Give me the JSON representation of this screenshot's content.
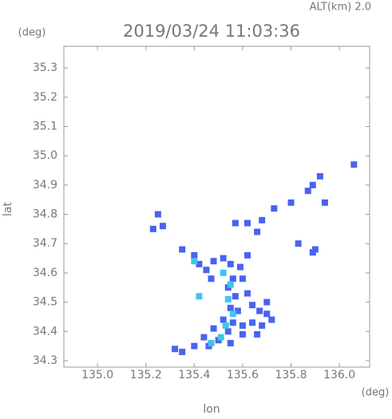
{
  "chart_data": {
    "type": "scatter",
    "title": "2019/03/24 11:03:36",
    "subtitle": "ALT(km) 2.0",
    "y_unit": "(deg)",
    "x_unit": "(deg)",
    "y_label": "lat",
    "x_label": "lon",
    "xlim": [
      134.861,
      136.125
    ],
    "ylim": [
      34.278,
      35.374
    ],
    "xticks": [
      {
        "value": 135,
        "label": "135.0"
      },
      135.2,
      135.4,
      135.6,
      135.8,
      {
        "value": 136,
        "label": "136.0"
      }
    ],
    "yticks": [
      34.3,
      34.4,
      34.5,
      34.6,
      34.7,
      34.8,
      34.9,
      {
        "value": 35,
        "label": "35.0"
      },
      35.1,
      35.2,
      35.3
    ],
    "series": [
      {
        "color": "#4a63ef",
        "x": [
          136.06,
          135.92,
          135.87,
          135.89,
          135.94,
          135.8,
          135.73,
          135.68,
          135.66,
          135.62,
          135.57,
          135.25,
          135.27,
          135.23,
          135.35,
          135.4,
          135.42,
          135.45,
          135.48,
          135.52,
          135.55,
          135.59,
          135.62,
          135.6,
          135.56,
          135.54,
          135.57,
          135.62,
          135.55,
          135.58,
          135.64,
          135.67,
          135.7,
          135.52,
          135.56,
          135.6,
          135.64,
          135.68,
          135.72,
          135.48,
          135.54,
          135.6,
          135.66,
          135.44,
          135.5,
          135.55,
          135.4,
          135.46,
          135.35,
          135.32,
          135.83,
          135.89,
          135.9,
          135.47,
          135.7
        ],
        "y": [
          34.97,
          34.93,
          34.88,
          34.9,
          34.84,
          34.84,
          34.82,
          34.78,
          34.74,
          34.77,
          34.77,
          34.8,
          34.76,
          34.75,
          34.68,
          34.66,
          34.63,
          34.61,
          34.64,
          34.65,
          34.63,
          34.62,
          34.66,
          34.58,
          34.58,
          34.55,
          34.52,
          34.53,
          34.48,
          34.47,
          34.49,
          34.47,
          34.46,
          34.44,
          34.43,
          34.42,
          34.43,
          34.42,
          34.44,
          34.41,
          34.4,
          34.39,
          34.39,
          34.38,
          34.37,
          34.36,
          34.35,
          34.35,
          34.33,
          34.34,
          34.7,
          34.67,
          34.68,
          34.58,
          34.5
        ]
      },
      {
        "color": "#3fc4ef",
        "x": [
          135.52,
          135.55,
          135.54,
          135.56,
          135.53,
          135.51,
          135.47,
          135.42,
          135.4
        ],
        "y": [
          34.6,
          34.56,
          34.51,
          34.46,
          34.42,
          34.38,
          34.36,
          34.52,
          34.64
        ]
      }
    ]
  }
}
